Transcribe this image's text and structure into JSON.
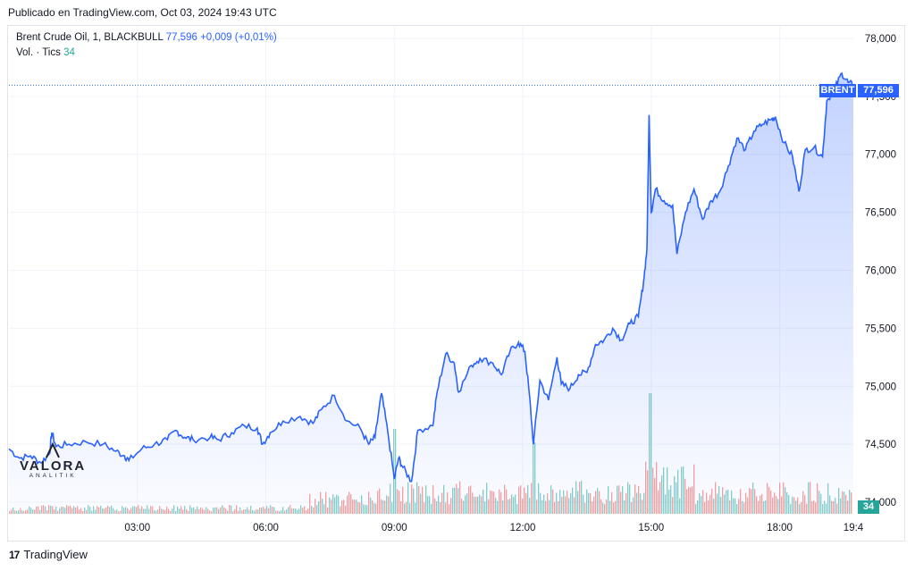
{
  "published": "Publicado en TradingView.com, Oct 03, 2024 19:43 UTC",
  "legend": {
    "symbol": "Brent Crude Oil, 1, BLACKBULL",
    "price": "77,596",
    "change": "+0,009 (+0,01%)",
    "volume_label": "Vol. · Tics",
    "volume_value": "34"
  },
  "watermark": {
    "name": "VALORA",
    "sub": "ANALITIK"
  },
  "footer": {
    "brand": "TradingView"
  },
  "price_tags": {
    "symbol_tag": "BRENT",
    "price_tag": "77,596",
    "volume_tag": "34"
  },
  "colors": {
    "line": "#2962ff",
    "up_volume": "#26a69a",
    "down_volume": "#ef5350"
  },
  "chart_data": {
    "type": "area",
    "symbol": "Brent Crude Oil",
    "interval": "1",
    "y_axis": {
      "min": 73.9,
      "max": 78.1,
      "ticks": [
        "78,000",
        "77,500",
        "77,000",
        "76,500",
        "76,000",
        "75,500",
        "75,000",
        "74,500",
        "74,000"
      ],
      "tick_values": [
        78.0,
        77.5,
        77.0,
        76.5,
        76.0,
        75.5,
        75.0,
        74.5,
        74.0
      ]
    },
    "x_axis": {
      "min_hour": 0.0,
      "max_hour": 19.72,
      "ticks": [
        "03:00",
        "06:00",
        "09:00",
        "12:00",
        "15:00",
        "18:00",
        "19:4"
      ],
      "tick_hours": [
        3,
        6,
        9,
        12,
        15,
        18,
        19.72
      ]
    },
    "last_price": 77.596,
    "points": [
      [
        0.0,
        74.46
      ],
      [
        0.25,
        74.38
      ],
      [
        0.5,
        74.4
      ],
      [
        0.75,
        74.34
      ],
      [
        0.95,
        74.42
      ],
      [
        1.0,
        74.6
      ],
      [
        1.1,
        74.48
      ],
      [
        1.4,
        74.5
      ],
      [
        1.8,
        74.52
      ],
      [
        2.2,
        74.5
      ],
      [
        2.5,
        74.44
      ],
      [
        2.7,
        74.4
      ],
      [
        2.8,
        74.36
      ],
      [
        3.1,
        74.46
      ],
      [
        3.4,
        74.5
      ],
      [
        3.7,
        74.54
      ],
      [
        3.9,
        74.62
      ],
      [
        4.1,
        74.56
      ],
      [
        4.3,
        74.54
      ],
      [
        4.7,
        74.56
      ],
      [
        4.9,
        74.54
      ],
      [
        5.2,
        74.6
      ],
      [
        5.5,
        74.66
      ],
      [
        5.8,
        74.64
      ],
      [
        5.92,
        74.5
      ],
      [
        6.1,
        74.6
      ],
      [
        6.4,
        74.7
      ],
      [
        6.8,
        74.74
      ],
      [
        7.1,
        74.68
      ],
      [
        7.3,
        74.8
      ],
      [
        7.6,
        74.92
      ],
      [
        7.9,
        74.7
      ],
      [
        8.2,
        74.64
      ],
      [
        8.4,
        74.5
      ],
      [
        8.55,
        74.56
      ],
      [
        8.7,
        74.94
      ],
      [
        8.85,
        74.6
      ],
      [
        9.0,
        74.2
      ],
      [
        9.1,
        74.38
      ],
      [
        9.2,
        74.3
      ],
      [
        9.4,
        74.18
      ],
      [
        9.55,
        74.62
      ],
      [
        9.9,
        74.66
      ],
      [
        10.0,
        74.95
      ],
      [
        10.2,
        75.28
      ],
      [
        10.4,
        75.2
      ],
      [
        10.5,
        74.95
      ],
      [
        10.8,
        75.18
      ],
      [
        11.0,
        75.24
      ],
      [
        11.3,
        75.2
      ],
      [
        11.5,
        75.1
      ],
      [
        11.7,
        75.3
      ],
      [
        11.9,
        75.38
      ],
      [
        12.05,
        75.3
      ],
      [
        12.15,
        74.95
      ],
      [
        12.25,
        74.5
      ],
      [
        12.4,
        75.05
      ],
      [
        12.6,
        74.88
      ],
      [
        12.8,
        75.25
      ],
      [
        12.9,
        75.02
      ],
      [
        13.1,
        74.98
      ],
      [
        13.3,
        75.1
      ],
      [
        13.5,
        75.12
      ],
      [
        13.7,
        75.36
      ],
      [
        13.9,
        75.4
      ],
      [
        14.1,
        75.5
      ],
      [
        14.3,
        75.4
      ],
      [
        14.5,
        75.54
      ],
      [
        14.7,
        75.6
      ],
      [
        14.82,
        75.9
      ],
      [
        14.9,
        76.18
      ],
      [
        14.95,
        77.34
      ],
      [
        15.0,
        76.5
      ],
      [
        15.1,
        76.7
      ],
      [
        15.3,
        76.6
      ],
      [
        15.5,
        76.56
      ],
      [
        15.6,
        76.14
      ],
      [
        15.8,
        76.5
      ],
      [
        16.0,
        76.7
      ],
      [
        16.2,
        76.44
      ],
      [
        16.4,
        76.6
      ],
      [
        16.6,
        76.68
      ],
      [
        16.8,
        76.9
      ],
      [
        17.0,
        77.14
      ],
      [
        17.2,
        77.04
      ],
      [
        17.4,
        77.2
      ],
      [
        17.6,
        77.26
      ],
      [
        17.8,
        77.3
      ],
      [
        17.9,
        77.32
      ],
      [
        18.1,
        77.1
      ],
      [
        18.3,
        76.98
      ],
      [
        18.45,
        76.68
      ],
      [
        18.6,
        77.04
      ],
      [
        18.8,
        77.06
      ],
      [
        19.0,
        76.98
      ],
      [
        19.1,
        77.46
      ],
      [
        19.3,
        77.58
      ],
      [
        19.45,
        77.7
      ],
      [
        19.6,
        77.62
      ],
      [
        19.72,
        77.596
      ]
    ]
  }
}
